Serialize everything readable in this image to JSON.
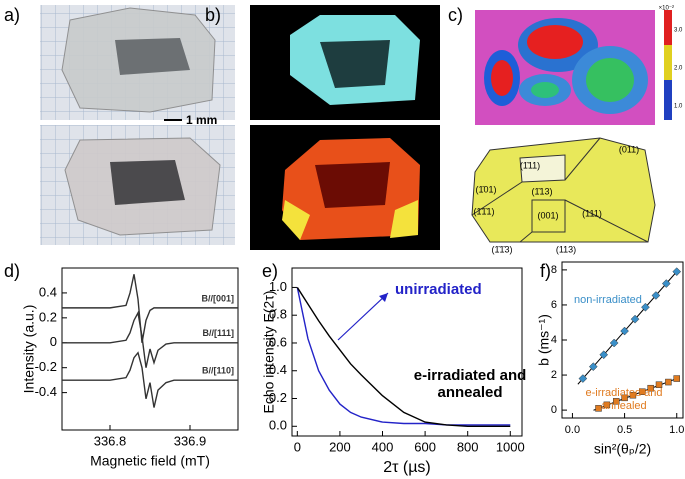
{
  "panel_labels": [
    "a)",
    "b)",
    "c)",
    "d)",
    "e)",
    "f)"
  ],
  "scale_bar": "1 mm",
  "colorbar": {
    "exponent": "×10⁻²",
    "ticks": [
      "3.0",
      "2.0",
      "1.0"
    ]
  },
  "facets": [
    "(011)",
    "(1̄11)",
    "(1̄01)",
    "(1̄13)",
    "(1̄1̄1)",
    "(001)",
    "(111)",
    "(1̄1̄3)",
    "(113)"
  ],
  "chart_data": [
    {
      "type": "line",
      "xlabel": "Magnetic field (mT)",
      "ylabel": "Intensity (a.u.)",
      "x": [
        336.74,
        336.76,
        336.78,
        336.8,
        336.82,
        336.825,
        336.83,
        336.835,
        336.84,
        336.845,
        336.85,
        336.855,
        336.86,
        336.87,
        336.88,
        336.9,
        336.92,
        336.94,
        336.96
      ],
      "series": [
        {
          "name": "B//[001]",
          "color": "#333333",
          "values": [
            0.28,
            0.28,
            0.28,
            0.28,
            0.3,
            0.4,
            0.55,
            0.35,
            0.0,
            0.18,
            0.26,
            0.28,
            0.28,
            0.28,
            0.28,
            0.28,
            0.28,
            0.28,
            0.28
          ]
        },
        {
          "name": "B//[111]",
          "color": "#333333",
          "values": [
            0,
            0,
            0,
            0,
            0.02,
            0.08,
            0.18,
            0.24,
            0.05,
            -0.2,
            -0.05,
            -0.16,
            -0.06,
            -0.01,
            0,
            0,
            0,
            0,
            0
          ]
        },
        {
          "name": "B//[110]",
          "color": "#333333",
          "values": [
            -0.3,
            -0.3,
            -0.3,
            -0.3,
            -0.28,
            -0.22,
            -0.12,
            -0.08,
            -0.2,
            -0.45,
            -0.32,
            -0.52,
            -0.38,
            -0.32,
            -0.3,
            -0.3,
            -0.3,
            -0.3,
            -0.3
          ]
        }
      ],
      "xlim": [
        336.74,
        336.96
      ],
      "ylim": [
        -0.7,
        0.6
      ],
      "xticks": [
        336.8,
        336.9
      ],
      "yticks": [
        -0.4,
        -0.2,
        0,
        0.2,
        0.4
      ]
    },
    {
      "type": "line",
      "xlabel": "2τ (µs)",
      "ylabel": "Echo intensity E(2τ)",
      "x": [
        0,
        50,
        100,
        150,
        200,
        250,
        300,
        400,
        500,
        600,
        700,
        800,
        1000
      ],
      "series": [
        {
          "name": "unirradiated",
          "color": "#2323c8",
          "values": [
            1,
            0.63,
            0.4,
            0.26,
            0.16,
            0.1,
            0.066,
            0.03,
            0.02,
            0.02,
            0.01,
            0.01,
            0.01
          ]
        },
        {
          "name": "e-irradiated and annealed",
          "color": "#000000",
          "values": [
            1,
            0.88,
            0.76,
            0.65,
            0.55,
            0.45,
            0.37,
            0.22,
            0.1,
            0.03,
            0.01,
            0,
            0
          ]
        }
      ],
      "xlim": [
        -25,
        1055
      ],
      "ylim": [
        -0.07,
        1.14
      ],
      "xticks": [
        0,
        200,
        400,
        600,
        800,
        1000
      ],
      "yticks": [
        {
          "value": 0,
          "label": "0.0"
        },
        0.2,
        0.4,
        0.6,
        0.8,
        {
          "value": 1,
          "label": "1.0"
        }
      ]
    },
    {
      "type": "scatter",
      "xlabel": "sin²(θₚ/2)",
      "ylabel": "b (ms⁻¹)",
      "series": [
        {
          "name": "non-irradiated",
          "color": "#3a8fc8",
          "marker": "diamond",
          "x": [
            0.1,
            0.2,
            0.3,
            0.4,
            0.5,
            0.6,
            0.7,
            0.8,
            0.9,
            1.0
          ],
          "values": [
            1.8,
            2.48,
            3.16,
            3.83,
            4.51,
            5.19,
            5.87,
            6.54,
            7.22,
            7.9
          ]
        },
        {
          "name": "e-irradiated and annealed",
          "color": "#e07b20",
          "marker": "square",
          "x": [
            0.25,
            0.33,
            0.42,
            0.5,
            0.58,
            0.67,
            0.75,
            0.83,
            0.92,
            1.0
          ],
          "values": [
            0.1,
            0.3,
            0.5,
            0.7,
            0.85,
            1.05,
            1.25,
            1.45,
            1.6,
            1.8
          ]
        }
      ],
      "xlim": [
        -0.1,
        1.06
      ],
      "ylim": [
        -0.45,
        8.45
      ],
      "xticks": [
        {
          "value": 0,
          "label": "0.0"
        },
        0.5,
        {
          "value": 1,
          "label": "1.0"
        }
      ],
      "yticks": [
        0,
        2,
        4,
        6,
        8
      ]
    }
  ]
}
